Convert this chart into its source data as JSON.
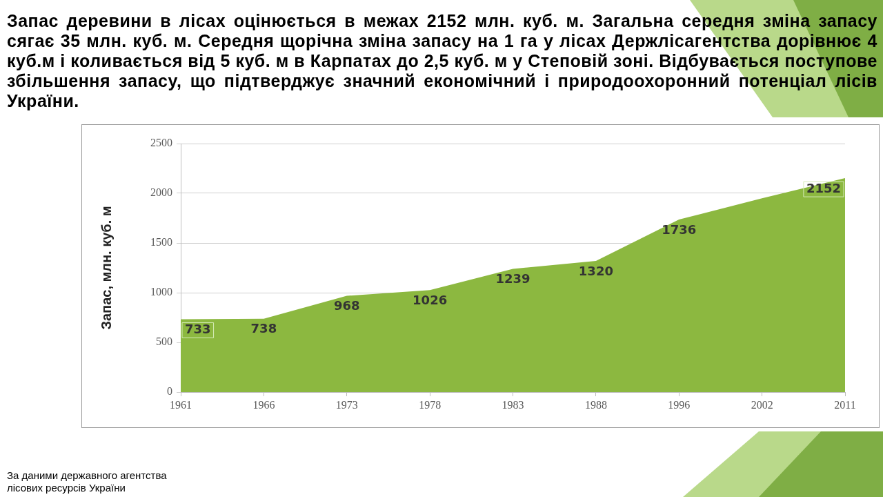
{
  "chart_data": {
    "type": "area",
    "title": "Запас деревини в лісах оцінюється в межах 2152 млн. куб. м. Загальна середня зміна запасу сягає 35 млн. куб. м. Середня щорічна зміна запасу на 1 га у лісах Держлісагентства дорівнює 4 куб.м і коливається від 5 куб. м в Карпатах до 2,5 куб. м у Степовій зоні. Відбувається поступове збільшення запасу, що підтверджує значний економічний і природоохоронний потенціал лісів України.",
    "ylabel": "Запас, млн. куб. м",
    "categories": [
      "1961",
      "1966",
      "1973",
      "1978",
      "1983",
      "1988",
      "1996",
      "2002",
      "2011"
    ],
    "values": [
      733,
      738,
      968,
      1026,
      1239,
      1320,
      1736,
      1950,
      2152
    ],
    "value_labels": [
      "733",
      "738",
      "968",
      "1026",
      "1239",
      "1320",
      "1736",
      null,
      "2152"
    ],
    "color": "#8cb840",
    "ylim": [
      0,
      2500
    ],
    "yticks": [
      0,
      500,
      1000,
      1500,
      2000,
      2500
    ],
    "grid": "y",
    "annotations": [
      "За даними державного агентства лісових ресурсів України"
    ]
  }
}
